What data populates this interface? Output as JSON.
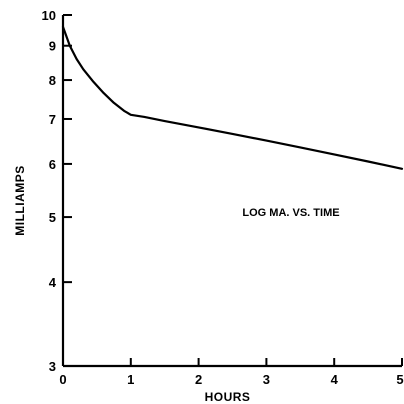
{
  "chart_data": {
    "type": "line",
    "title": "",
    "xlabel": "HOURS",
    "ylabel": "MILLIAMPS",
    "y_scale": "log",
    "xlim": [
      0,
      5
    ],
    "ylim": [
      3,
      10
    ],
    "x_ticks": [
      0,
      1,
      2,
      3,
      4,
      5
    ],
    "y_ticks": [
      3,
      4,
      5,
      6,
      7,
      8,
      9,
      10
    ],
    "grid": false,
    "annotation": "LOG MA. VS. TIME",
    "series": [
      {
        "x": [
          0,
          0.1,
          0.2,
          0.3,
          0.45,
          0.6,
          0.75,
          0.9,
          1.0,
          1.2,
          1.5,
          2.0,
          2.5,
          3.0,
          3.5,
          4.0,
          4.5,
          5.0
        ],
        "values": [
          9.6,
          9.0,
          8.6,
          8.3,
          7.95,
          7.65,
          7.4,
          7.2,
          7.1,
          7.05,
          6.95,
          6.8,
          6.65,
          6.5,
          6.35,
          6.2,
          6.05,
          5.9
        ]
      }
    ]
  }
}
